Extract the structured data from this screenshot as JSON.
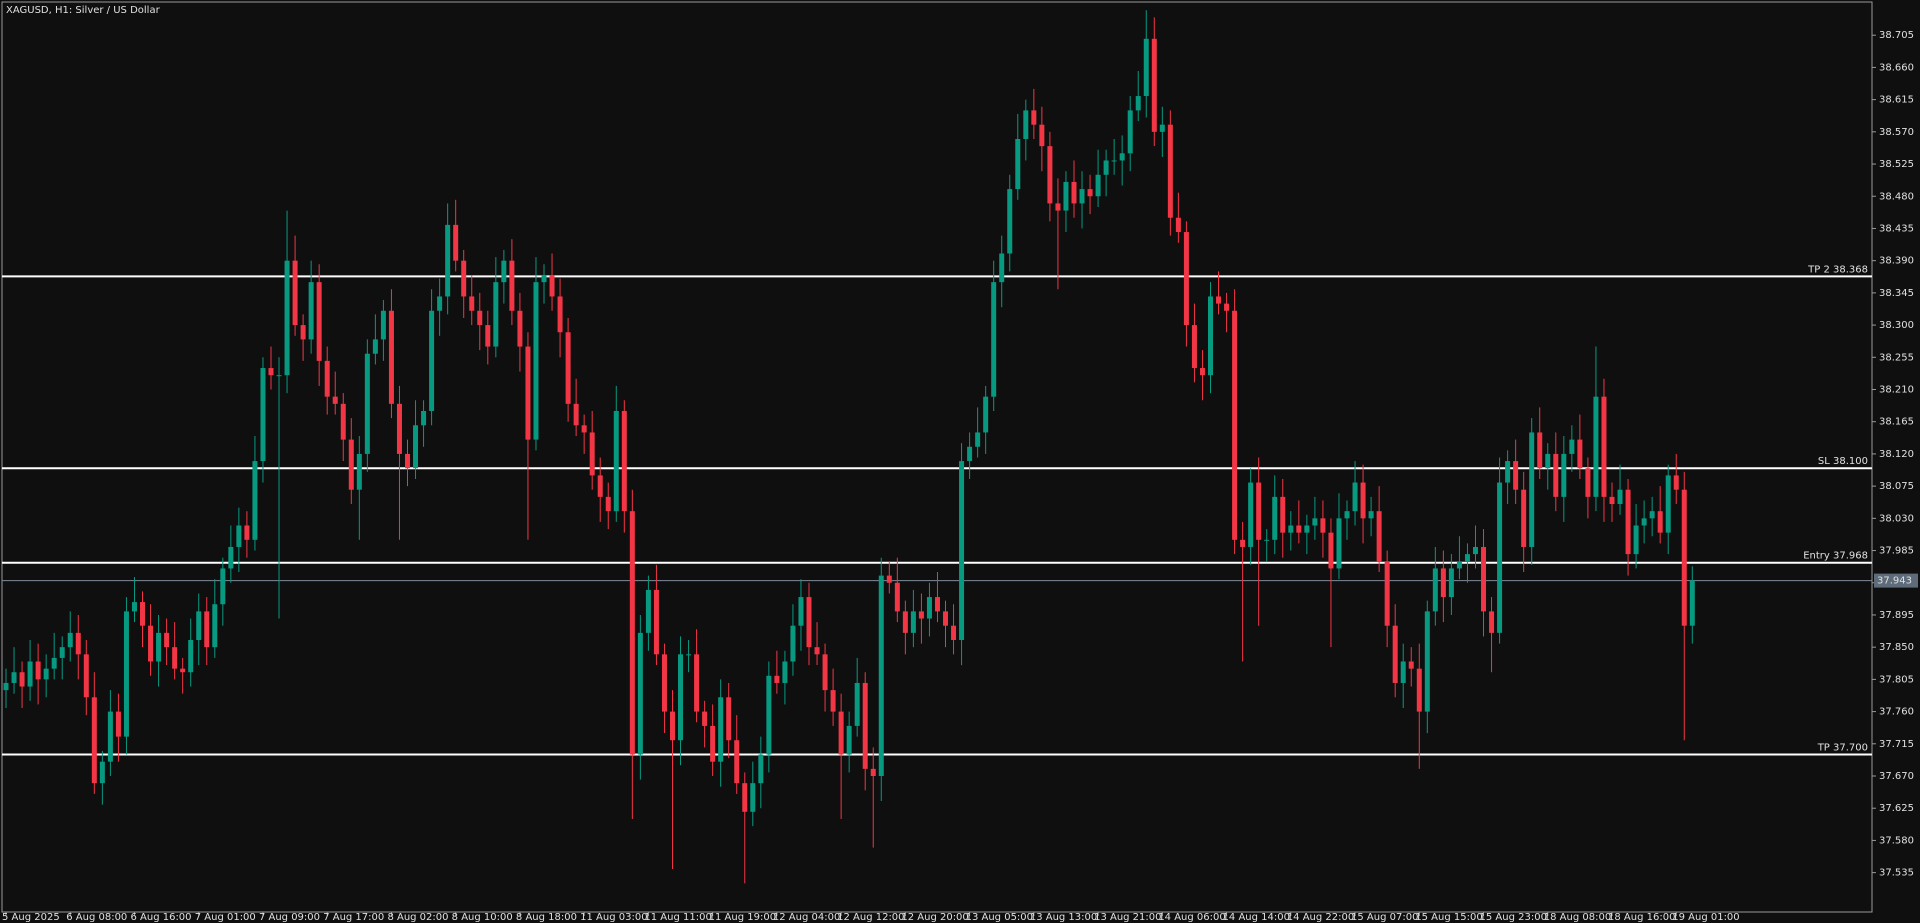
{
  "chart_data": {
    "type": "candlestick",
    "title": "XAGUSD, H1:  Silver / US Dollar",
    "up_color": "#089981",
    "down_color": "#f23645",
    "x": [
      "5 Aug 2025",
      null,
      null,
      null,
      null,
      null,
      null,
      null,
      "6 Aug 08:00",
      null,
      null,
      null,
      null,
      null,
      null,
      null,
      "6 Aug 16:00",
      null,
      null,
      null,
      null,
      null,
      null,
      null,
      "7 Aug 01:00",
      null,
      null,
      null,
      null,
      null,
      null,
      null,
      "7 Aug 09:00",
      null,
      null,
      null,
      null,
      null,
      null,
      null,
      "7 Aug 17:00",
      null,
      null,
      null,
      null,
      null,
      null,
      null,
      "8 Aug 02:00",
      null,
      null,
      null,
      null,
      null,
      null,
      null,
      "8 Aug 10:00",
      null,
      null,
      null,
      null,
      null,
      null,
      null,
      "8 Aug 18:00",
      null,
      null,
      null,
      null,
      null,
      null,
      null,
      "11 Aug 03:00",
      null,
      null,
      null,
      null,
      null,
      null,
      null,
      "11 Aug 11:00",
      null,
      null,
      null,
      null,
      null,
      null,
      null,
      "11 Aug 19:00",
      null,
      null,
      null,
      null,
      null,
      null,
      null,
      "12 Aug 04:00",
      null,
      null,
      null,
      null,
      null,
      null,
      null,
      "12 Aug 12:00",
      null,
      null,
      null,
      null,
      null,
      null,
      null,
      "12 Aug 20:00",
      null,
      null,
      null,
      null,
      null,
      null,
      null,
      "13 Aug 05:00",
      null,
      null,
      null,
      null,
      null,
      null,
      null,
      "13 Aug 13:00",
      null,
      null,
      null,
      null,
      null,
      null,
      null,
      "13 Aug 21:00",
      null,
      null,
      null,
      null,
      null,
      null,
      null,
      "14 Aug 06:00",
      null,
      null,
      null,
      null,
      null,
      null,
      null,
      "14 Aug 14:00",
      null,
      null,
      null,
      null,
      null,
      null,
      null,
      "14 Aug 22:00",
      null,
      null,
      null,
      null,
      null,
      null,
      null,
      "15 Aug 07:00",
      null,
      null,
      null,
      null,
      null,
      null,
      null,
      "15 Aug 15:00",
      null,
      null,
      null,
      null,
      null,
      null,
      null,
      "15 Aug 23:00",
      null,
      null,
      null,
      null,
      null,
      null,
      null,
      "18 Aug 08:00",
      null,
      null,
      null,
      null,
      null,
      null,
      null,
      "18 Aug 16:00",
      null,
      null,
      null,
      null,
      null,
      null,
      null,
      "19 Aug 01:00",
      null,
      null
    ],
    "open": [
      37.79,
      37.8,
      37.815,
      37.795,
      37.83,
      37.805,
      37.82,
      37.835,
      37.85,
      37.87,
      37.84,
      37.78,
      37.66,
      37.69,
      37.76,
      37.725,
      37.9,
      37.913,
      37.88,
      37.83,
      37.87,
      37.85,
      37.82,
      37.815,
      37.86,
      37.9,
      37.85,
      37.91,
      37.96,
      37.99,
      38.02,
      38.0,
      38.11,
      38.24,
      38.23,
      38.23,
      38.39,
      38.3,
      38.28,
      38.36,
      38.25,
      38.2,
      38.19,
      38.14,
      38.07,
      38.12,
      38.26,
      38.28,
      38.32,
      38.19,
      38.12,
      38.1,
      38.16,
      38.18,
      38.32,
      38.34,
      38.44,
      38.39,
      38.34,
      38.32,
      38.3,
      38.27,
      38.36,
      38.39,
      38.32,
      38.27,
      38.14,
      38.36,
      38.37,
      38.34,
      38.29,
      38.19,
      38.16,
      38.15,
      38.09,
      38.06,
      38.04,
      38.18,
      38.04,
      37.7,
      37.87,
      37.93,
      37.84,
      37.76,
      37.72,
      37.84,
      37.84,
      37.76,
      37.74,
      37.69,
      37.78,
      37.72,
      37.66,
      37.62,
      37.66,
      37.7,
      37.81,
      37.8,
      37.83,
      37.88,
      37.92,
      37.85,
      37.84,
      37.79,
      37.76,
      37.7,
      37.74,
      37.8,
      37.68,
      37.67,
      37.95,
      37.94,
      37.9,
      37.87,
      37.9,
      37.89,
      37.92,
      37.9,
      37.88,
      37.86,
      38.11,
      38.13,
      38.15,
      38.2,
      38.36,
      38.4,
      38.49,
      38.56,
      38.6,
      38.58,
      38.55,
      38.47,
      38.46,
      38.5,
      38.47,
      38.49,
      38.48,
      38.51,
      38.53,
      38.53,
      38.54,
      38.6,
      38.62,
      38.7,
      38.57,
      38.58,
      38.45,
      38.43,
      38.3,
      38.24,
      38.23,
      38.34,
      38.33,
      38.32,
      38.0,
      37.99,
      38.08,
      38.0,
      38.0,
      38.06,
      38.01,
      38.02,
      38.01,
      38.02,
      38.03,
      38.01,
      37.96,
      38.03,
      38.04,
      38.08,
      38.03,
      38.04,
      37.97,
      37.88,
      37.8,
      37.83,
      37.82,
      37.76,
      37.9,
      37.96,
      37.92,
      37.96,
      37.97,
      37.98,
      37.99,
      37.9,
      37.87,
      38.08,
      38.11,
      38.07,
      37.99,
      38.15,
      38.1,
      38.12,
      38.06,
      38.12,
      38.14,
      38.1,
      38.06,
      38.2,
      38.06,
      38.05,
      38.07,
      37.98,
      38.02,
      38.03,
      38.04,
      38.01,
      38.09,
      38.07,
      37.88
    ],
    "high": [
      37.82,
      37.85,
      37.83,
      37.86,
      37.855,
      37.84,
      37.87,
      37.865,
      37.9,
      37.895,
      37.86,
      37.815,
      37.705,
      37.79,
      37.785,
      37.92,
      37.948,
      37.928,
      37.91,
      37.895,
      37.89,
      37.885,
      37.835,
      37.89,
      37.925,
      37.92,
      37.945,
      37.975,
      38.02,
      38.045,
      38.04,
      38.145,
      38.255,
      38.27,
      38.255,
      38.46,
      38.425,
      38.315,
      38.39,
      38.385,
      38.27,
      38.235,
      38.205,
      38.17,
      38.145,
      38.28,
      38.315,
      38.335,
      38.35,
      38.215,
      38.14,
      38.195,
      38.195,
      38.35,
      38.365,
      38.47,
      38.475,
      38.405,
      38.37,
      38.345,
      38.32,
      38.395,
      38.405,
      38.42,
      38.345,
      38.29,
      38.395,
      38.385,
      38.4,
      38.365,
      38.31,
      38.225,
      38.175,
      38.18,
      38.115,
      38.08,
      38.215,
      38.195,
      38.07,
      37.895,
      37.95,
      37.965,
      37.855,
      37.79,
      37.865,
      37.86,
      37.875,
      37.775,
      37.77,
      37.805,
      37.8,
      37.755,
      37.675,
      37.69,
      37.725,
      37.83,
      37.845,
      37.845,
      37.91,
      37.945,
      37.94,
      37.885,
      37.855,
      37.82,
      37.785,
      37.76,
      37.835,
      37.815,
      37.71,
      37.975,
      37.97,
      37.975,
      37.915,
      37.93,
      37.925,
      37.94,
      37.955,
      37.915,
      37.91,
      38.135,
      38.15,
      38.185,
      38.215,
      38.39,
      38.425,
      38.51,
      38.595,
      38.615,
      38.63,
      38.605,
      38.57,
      38.505,
      38.515,
      38.53,
      38.515,
      38.51,
      38.545,
      38.545,
      38.56,
      38.565,
      38.62,
      38.655,
      38.74,
      38.73,
      38.605,
      38.6,
      38.485,
      38.445,
      38.33,
      38.265,
      38.36,
      38.375,
      38.345,
      38.35,
      38.025,
      38.1,
      38.115,
      38.015,
      38.09,
      38.085,
      38.04,
      38.055,
      38.035,
      38.06,
      38.055,
      38.03,
      38.065,
      38.055,
      38.11,
      38.105,
      38.06,
      38.075,
      37.985,
      37.91,
      37.855,
      37.85,
      37.855,
      37.915,
      37.99,
      37.985,
      37.98,
      38.005,
      37.995,
      38.02,
      38.015,
      37.92,
      38.115,
      38.125,
      38.14,
      38.095,
      38.17,
      38.185,
      38.135,
      38.15,
      38.145,
      38.16,
      38.175,
      38.115,
      38.27,
      38.225,
      38.08,
      38.105,
      38.085,
      38.05,
      38.055,
      38.06,
      38.075,
      38.105,
      38.12,
      38.095,
      37.963
    ],
    "low": [
      37.765,
      37.785,
      37.765,
      37.775,
      37.77,
      37.78,
      37.805,
      37.805,
      37.83,
      37.805,
      37.755,
      37.645,
      37.63,
      37.67,
      37.69,
      37.7,
      37.885,
      37.85,
      37.81,
      37.795,
      37.825,
      37.805,
      37.785,
      37.795,
      37.825,
      37.825,
      37.835,
      37.88,
      37.94,
      37.955,
      37.975,
      37.985,
      38.08,
      38.21,
      37.89,
      38.205,
      38.285,
      38.25,
      38.26,
      38.215,
      38.175,
      38.175,
      38.11,
      38.05,
      38.0,
      38.095,
      38.245,
      38.25,
      38.17,
      38.0,
      38.075,
      38.085,
      38.13,
      38.16,
      38.285,
      38.315,
      38.375,
      38.31,
      38.3,
      38.265,
      38.245,
      38.255,
      38.33,
      38.3,
      38.235,
      38.0,
      38.125,
      38.33,
      38.32,
      38.255,
      38.165,
      38.145,
      38.12,
      38.07,
      38.025,
      38.015,
      38.025,
      38.01,
      37.61,
      37.665,
      37.845,
      37.825,
      37.73,
      37.54,
      37.685,
      37.815,
      37.745,
      37.71,
      37.67,
      37.655,
      37.695,
      37.645,
      37.52,
      37.6,
      37.625,
      37.675,
      37.785,
      37.77,
      37.81,
      37.845,
      37.825,
      37.825,
      37.76,
      37.74,
      37.61,
      37.675,
      37.725,
      37.65,
      37.57,
      37.635,
      37.925,
      37.885,
      37.84,
      37.85,
      37.855,
      37.865,
      37.885,
      37.85,
      37.84,
      37.825,
      38.085,
      38.115,
      38.12,
      38.18,
      38.325,
      38.375,
      38.475,
      38.53,
      38.56,
      38.515,
      38.445,
      38.35,
      38.43,
      38.45,
      38.435,
      38.455,
      38.465,
      38.48,
      38.51,
      38.495,
      38.515,
      38.585,
      38.59,
      38.55,
      38.535,
      38.425,
      38.415,
      38.27,
      38.22,
      38.195,
      38.205,
      38.315,
      38.29,
      37.98,
      37.83,
      37.965,
      37.88,
      37.97,
      37.98,
      37.975,
      37.985,
      37.995,
      37.98,
      38.0,
      37.975,
      37.85,
      37.945,
      38.0,
      38.02,
      37.995,
      38.005,
      37.955,
      37.85,
      37.78,
      37.765,
      37.795,
      37.68,
      37.73,
      37.88,
      37.885,
      37.895,
      37.945,
      37.94,
      37.96,
      37.865,
      37.815,
      37.855,
      38.05,
      38.05,
      37.955,
      37.965,
      38.085,
      38.07,
      38.04,
      38.025,
      38.095,
      38.085,
      38.03,
      38.04,
      38.025,
      38.025,
      38.035,
      37.95,
      37.96,
      37.995,
      38.005,
      37.995,
      37.98,
      38.05,
      37.72,
      37.855
    ],
    "close": [
      37.8,
      37.815,
      37.795,
      37.83,
      37.805,
      37.82,
      37.835,
      37.85,
      37.87,
      37.84,
      37.78,
      37.66,
      37.69,
      37.76,
      37.725,
      37.9,
      37.913,
      37.88,
      37.83,
      37.87,
      37.85,
      37.82,
      37.815,
      37.86,
      37.9,
      37.85,
      37.91,
      37.96,
      37.99,
      38.02,
      38.0,
      38.11,
      38.24,
      38.23,
      38.23,
      38.39,
      38.3,
      38.28,
      38.36,
      38.25,
      38.2,
      38.19,
      38.14,
      38.07,
      38.12,
      38.26,
      38.28,
      38.32,
      38.19,
      38.12,
      38.1,
      38.16,
      38.18,
      38.32,
      38.34,
      38.44,
      38.39,
      38.34,
      38.32,
      38.3,
      38.27,
      38.36,
      38.39,
      38.32,
      38.27,
      38.14,
      38.36,
      38.37,
      38.34,
      38.29,
      38.19,
      38.16,
      38.15,
      38.09,
      38.06,
      38.04,
      38.18,
      38.04,
      37.7,
      37.87,
      37.93,
      37.84,
      37.76,
      37.72,
      37.84,
      37.84,
      37.76,
      37.74,
      37.69,
      37.78,
      37.72,
      37.66,
      37.62,
      37.66,
      37.7,
      37.81,
      37.8,
      37.83,
      37.88,
      37.92,
      37.85,
      37.84,
      37.79,
      37.76,
      37.7,
      37.74,
      37.8,
      37.68,
      37.67,
      37.95,
      37.94,
      37.9,
      37.87,
      37.9,
      37.89,
      37.92,
      37.9,
      37.88,
      37.86,
      38.11,
      38.13,
      38.15,
      38.2,
      38.36,
      38.4,
      38.49,
      38.56,
      38.6,
      38.58,
      38.55,
      38.47,
      38.46,
      38.5,
      38.47,
      38.49,
      38.48,
      38.51,
      38.53,
      38.53,
      38.54,
      38.6,
      38.62,
      38.7,
      38.57,
      38.58,
      38.45,
      38.43,
      38.3,
      38.24,
      38.23,
      38.34,
      38.33,
      38.32,
      38.0,
      37.99,
      38.08,
      38.0,
      38.0,
      38.06,
      38.01,
      38.02,
      38.01,
      38.02,
      38.03,
      38.01,
      37.96,
      38.03,
      38.04,
      38.08,
      38.03,
      38.04,
      37.97,
      37.88,
      37.8,
      37.83,
      37.82,
      37.76,
      37.9,
      37.96,
      37.92,
      37.96,
      37.97,
      37.98,
      37.99,
      37.9,
      37.87,
      38.08,
      38.11,
      38.07,
      37.99,
      38.15,
      38.1,
      38.12,
      38.06,
      38.12,
      38.14,
      38.1,
      38.06,
      38.2,
      38.06,
      38.05,
      38.07,
      37.98,
      38.02,
      38.03,
      38.04,
      38.01,
      38.09,
      38.07,
      37.88,
      37.943
    ],
    "ylim": [
      37.48,
      38.75
    ],
    "yticks": [
      37.535,
      {
        "value": 37.58,
        "label": "37.580"
      },
      37.625,
      {
        "value": 37.67,
        "label": "37.670"
      },
      37.715,
      {
        "value": 37.76,
        "label": "37.760"
      },
      37.805,
      {
        "value": 37.85,
        "label": "37.850"
      },
      37.895,
      {
        "value": 37.94,
        "label": "37.940"
      },
      37.985,
      {
        "value": 38.03,
        "label": "38.030"
      },
      38.075,
      {
        "value": 38.12,
        "label": "38.120"
      },
      38.165,
      {
        "value": 38.21,
        "label": "38.210"
      },
      38.255,
      {
        "value": 38.3,
        "label": "38.300"
      },
      38.345,
      {
        "value": 38.39,
        "label": "38.390"
      },
      38.435,
      {
        "value": 38.48,
        "label": "38.480"
      },
      38.525,
      {
        "value": 38.57,
        "label": "38.570"
      },
      38.615,
      {
        "value": 38.66,
        "label": "38.660"
      },
      38.705
    ],
    "levels": [
      {
        "label": "TP 2 38.368",
        "value": 38.368
      },
      {
        "label": "SL 38.100",
        "value": 38.1
      },
      {
        "label": "Entry 37.968",
        "value": 37.968
      },
      {
        "label": "TP 37.700",
        "value": 37.7
      }
    ],
    "current_price": 37.943
  }
}
